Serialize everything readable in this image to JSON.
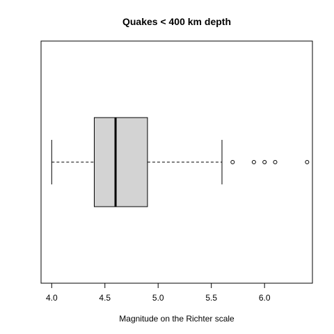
{
  "chart_data": {
    "type": "boxplot",
    "orientation": "horizontal",
    "title": "Quakes < 400 km depth",
    "xlabel": "Magnitude on the Richter scale",
    "xlim": [
      3.9,
      6.45
    ],
    "x_ticks": [
      4.0,
      4.5,
      5.0,
      5.5,
      6.0
    ],
    "x_tick_labels": [
      "4.0",
      "4.5",
      "5.0",
      "5.5",
      "6.0"
    ],
    "box": {
      "whisker_low": 4.0,
      "q1": 4.4,
      "median": 4.6,
      "q3": 4.9,
      "whisker_high": 5.6
    },
    "outliers": [
      5.7,
      5.9,
      6.0,
      6.1,
      6.4
    ],
    "box_fill": "#d3d3d3",
    "grid": false
  }
}
